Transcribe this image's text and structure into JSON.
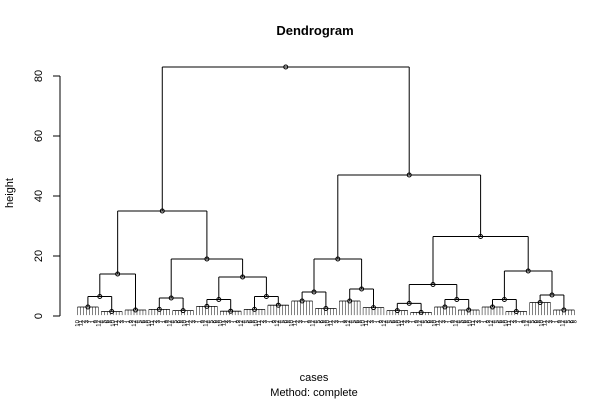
{
  "chart_data": {
    "type": "dendrogram",
    "title": "Dendrogram",
    "xlabel": "cases",
    "ylabel": "height",
    "subtitle": "Method:  complete",
    "ylim": [
      0,
      85
    ],
    "yticks": [
      0,
      20,
      40,
      60,
      80
    ],
    "grid": false,
    "n_leaves": 160,
    "leaf_label_pattern": [
      "10",
      "11",
      "2",
      "3",
      "7",
      "1",
      "9",
      "12",
      "4",
      "5",
      "6",
      "8"
    ],
    "tree": [
      83.0,
      [
        35.0,
        [
          14.0,
          [
            6.5,
            [
              3.0
            ],
            [
              1.5
            ]
          ],
          [
            2.0
          ]
        ],
        [
          19.0,
          [
            6.0,
            [
              2.2
            ],
            [
              1.8
            ]
          ],
          [
            13.0,
            [
              5.5,
              [
                3.2
              ],
              [
                1.6
              ]
            ],
            [
              6.5,
              [
                2.2
              ],
              [
                3.6
              ]
            ]
          ]
        ]
      ],
      [
        47.0,
        [
          19.0,
          [
            8.0,
            [
              5.0
            ],
            [
              2.5
            ]
          ],
          [
            9.0,
            [
              5.0
            ],
            [
              2.8
            ]
          ]
        ],
        [
          26.5,
          [
            10.5,
            [
              4.2,
              [
                1.8
              ],
              [
                1.2
              ]
            ],
            [
              5.5,
              [
                3.0
              ],
              [
                2.0
              ]
            ]
          ],
          [
            15.0,
            [
              5.5,
              [
                3.0
              ],
              [
                1.5
              ]
            ],
            [
              7.0,
              [
                4.5
              ],
              [
                2.0
              ]
            ]
          ]
        ]
      ]
    ]
  }
}
